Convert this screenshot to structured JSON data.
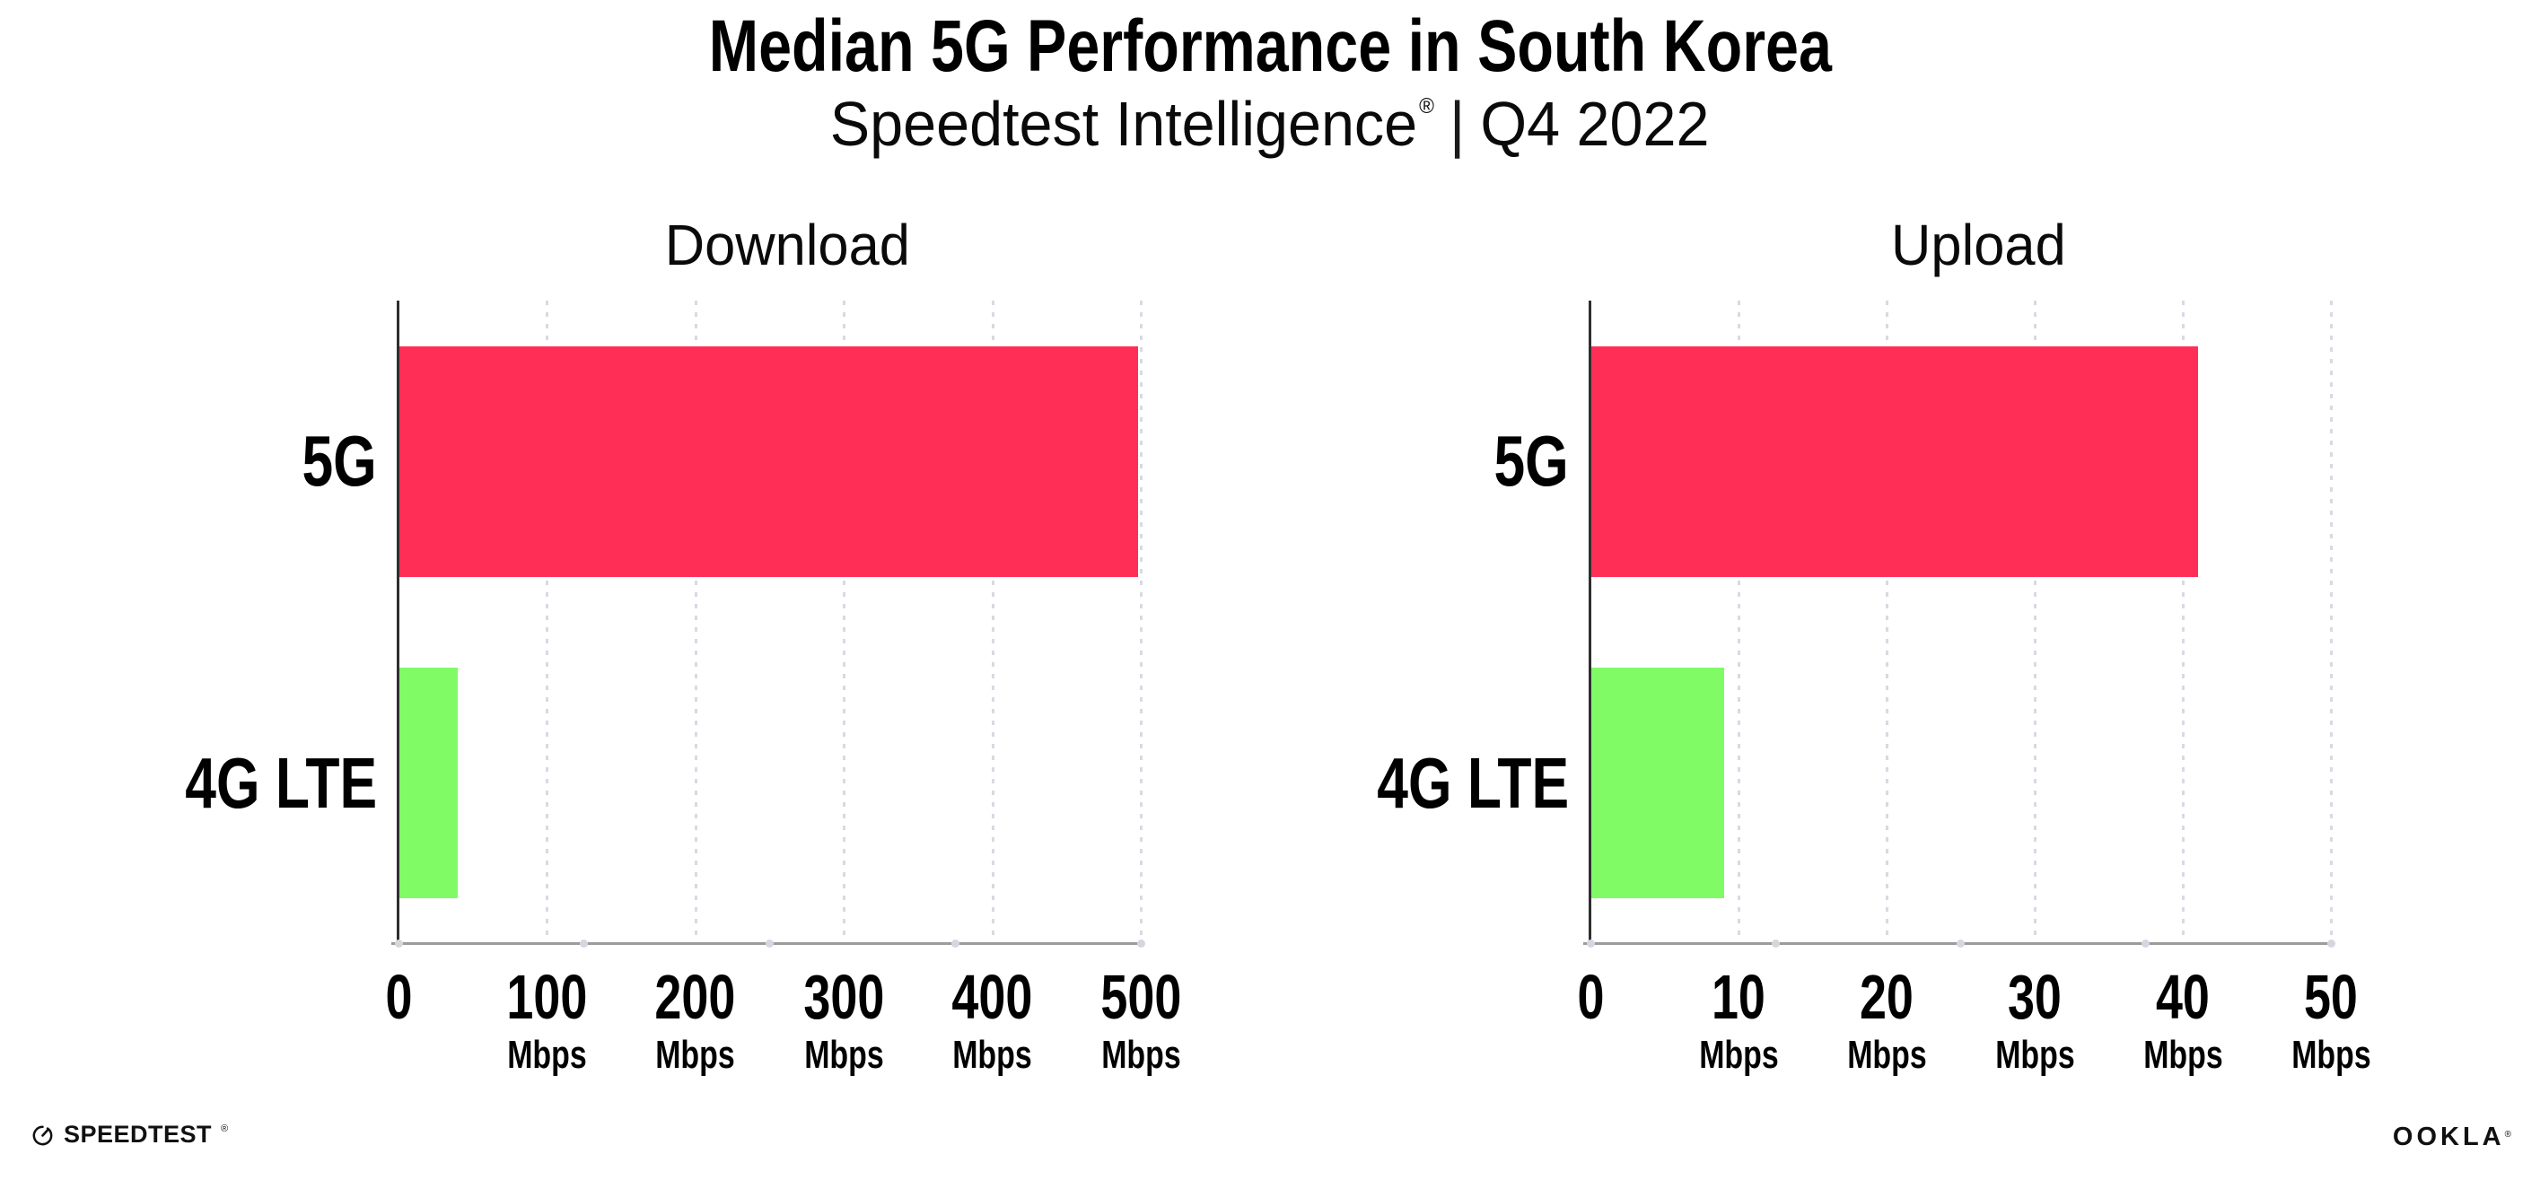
{
  "header": {
    "title": "Median 5G Performance in South Korea",
    "subtitle_brand": "Speedtest Intelligence",
    "subtitle_reg": "®",
    "subtitle_sep": "|",
    "subtitle_period": "Q4 2022"
  },
  "colors": {
    "bar_5g": "#FF2E57",
    "bar_4g_lte": "#80FB66",
    "y_axis": "#2f2f2f",
    "x_axis": "#9c9c9c",
    "gridline": "#d9d9e3",
    "axis_dot": "#d6d6e0",
    "text": "#000000",
    "background": "#ffffff"
  },
  "chart_data": [
    {
      "type": "bar",
      "orientation": "horizontal",
      "title": "Download",
      "categories": [
        "5G",
        "4G LTE"
      ],
      "values": [
        498,
        40
      ],
      "unit": "Mbps",
      "xlabel": "",
      "ylabel": "",
      "xlim": [
        0,
        500
      ],
      "xticks": [
        0,
        100,
        200,
        300,
        400,
        500
      ],
      "grid": true,
      "legend": "none",
      "bar_colors": [
        "#FF2E57",
        "#80FB66"
      ]
    },
    {
      "type": "bar",
      "orientation": "horizontal",
      "title": "Upload",
      "categories": [
        "5G",
        "4G LTE"
      ],
      "values": [
        41,
        9
      ],
      "unit": "Mbps",
      "xlabel": "",
      "ylabel": "",
      "xlim": [
        0,
        50
      ],
      "xticks": [
        0,
        10,
        20,
        30,
        40,
        50
      ],
      "grid": true,
      "legend": "none",
      "bar_colors": [
        "#FF2E57",
        "#80FB66"
      ]
    }
  ],
  "footer": {
    "speedtest_text": "SPEEDTEST",
    "speedtest_reg": "®",
    "ookla_text": "OOKLA",
    "ookla_reg": "®"
  }
}
